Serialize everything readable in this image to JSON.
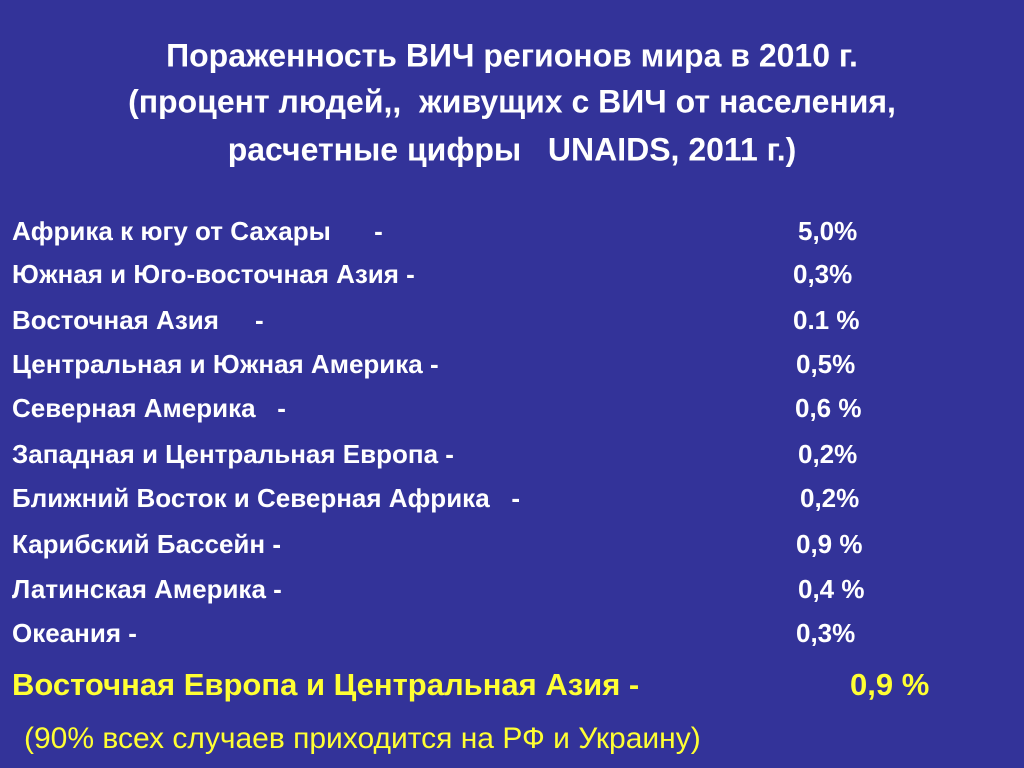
{
  "title": {
    "lines": [
      "Пораженность ВИЧ регионов мира в 2010 г.",
      "(процент людей,,  живущих с ВИЧ от населения,",
      "расчетные цифры   UNAIDS, 2011 г.)"
    ]
  },
  "rows": [
    {
      "region": "Африка к югу от Сахары      -",
      "value": "5,0%"
    },
    {
      "region": "Южная и Юго-восточная Азия -",
      "value": "0,3%"
    },
    {
      "region": "Восточная Азия     -",
      "value": "0.1 %"
    },
    {
      "region": "Центральная и Южная Америка -",
      "value": "0,5%"
    },
    {
      "region": "Северная Америка   -",
      "value": "0,6 %"
    },
    {
      "region": "Западная и Центральная Европа -",
      "value": "0,2%"
    },
    {
      "region": "Ближний Восток и Северная Африка   -",
      "value": "0,2%"
    },
    {
      "region": "Карибский Бассейн -",
      "value": "0,9 %"
    },
    {
      "region": "Латинская Америка -",
      "value": "0,4 %"
    },
    {
      "region": "Океания -",
      "value": "0,3%"
    }
  ],
  "highlight": {
    "region": "Восточная Европа и Центральная Азия -",
    "value": "0,9 %"
  },
  "note": "(90% всех случаев приходится на РФ и Украину)"
}
